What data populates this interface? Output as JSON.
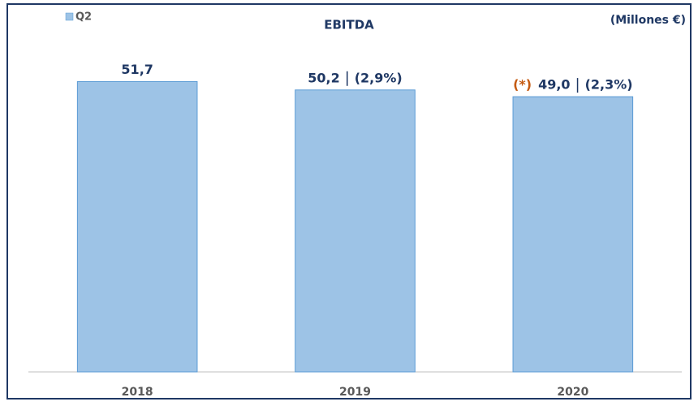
{
  "chart_data": {
    "type": "bar",
    "title": "EBITDA",
    "unit_label": "(Millones €)",
    "categories": [
      "2018",
      "2019",
      "2020"
    ],
    "series": [
      {
        "name": "Q2",
        "color": "#9dc3e6",
        "values": [
          51.7,
          50.2,
          49.0
        ],
        "value_labels": [
          "51,7",
          "50,2",
          "49,0"
        ]
      }
    ],
    "changes": [
      null,
      "(2,9%)",
      "(2,3%)"
    ],
    "notes": [
      null,
      null,
      "(*)"
    ],
    "ylim": [
      0,
      60
    ],
    "grid": false,
    "legend": "top-left"
  }
}
